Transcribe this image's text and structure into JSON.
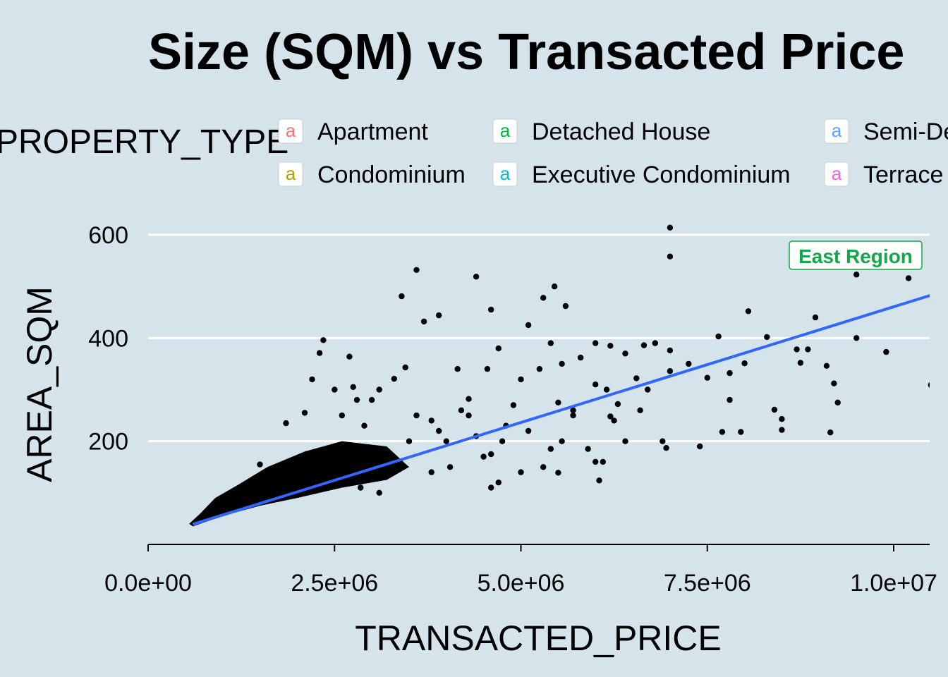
{
  "chart_data": {
    "type": "scatter",
    "title": "Size (SQM) vs Transacted Price",
    "xlabel": "TRANSACTED_PRICE",
    "ylabel": "AREA_SQM",
    "xlim": [
      -50000,
      10500000
    ],
    "ylim": [
      0,
      620
    ],
    "x_ticks": [
      0,
      2500000,
      5000000,
      7500000,
      10000000
    ],
    "x_tick_labels": [
      "0.0e+00",
      "2.5e+06",
      "5.0e+06",
      "7.5e+06",
      "1.0e+07"
    ],
    "y_ticks": [
      200,
      400,
      600
    ],
    "y_tick_labels": [
      "200",
      "400",
      "600"
    ],
    "legend": {
      "title": "PROPERTY_TYPE",
      "position": "top",
      "key_glyph": "a",
      "entries": [
        {
          "label": "Apartment",
          "color": "#f8766d"
        },
        {
          "label": "Condominium",
          "color": "#b79f00"
        },
        {
          "label": "Detached House",
          "color": "#00ba38"
        },
        {
          "label": "Executive Condominium",
          "color": "#00bfc4"
        },
        {
          "label": "Semi-Detached House",
          "color": "#619cff"
        },
        {
          "label": "Terrace House",
          "color": "#f564e3"
        }
      ]
    },
    "annotation": {
      "text": "East Region",
      "color": "#12a74a"
    },
    "trend_line": {
      "type": "linear",
      "color": "#3366ff",
      "x": [
        600000,
        10500000
      ],
      "y": [
        39,
        483
      ]
    },
    "point_color": "#000000",
    "points": [
      [
        7000000,
        614
      ],
      [
        7000000,
        558
      ],
      [
        3600000,
        532
      ],
      [
        4400000,
        519
      ],
      [
        5450000,
        500
      ],
      [
        9500000,
        523
      ],
      [
        10200000,
        516
      ],
      [
        3400000,
        481
      ],
      [
        5300000,
        478
      ],
      [
        5600000,
        462
      ],
      [
        4600000,
        455
      ],
      [
        8050000,
        452
      ],
      [
        3900000,
        444
      ],
      [
        3700000,
        432
      ],
      [
        8950000,
        440
      ],
      [
        5100000,
        425
      ],
      [
        2350000,
        396
      ],
      [
        4700000,
        380
      ],
      [
        6650000,
        386
      ],
      [
        7000000,
        376
      ],
      [
        6200000,
        385
      ],
      [
        7650000,
        403
      ],
      [
        8300000,
        402
      ],
      [
        8700000,
        378
      ],
      [
        9900000,
        373
      ],
      [
        9500000,
        400
      ],
      [
        8850000,
        378
      ],
      [
        6400000,
        370
      ],
      [
        7000000,
        336
      ],
      [
        7250000,
        350
      ],
      [
        6000000,
        310
      ],
      [
        6550000,
        322
      ],
      [
        7800000,
        332
      ],
      [
        8750000,
        352
      ],
      [
        9100000,
        346
      ],
      [
        9200000,
        312
      ],
      [
        10500000,
        309
      ],
      [
        7500000,
        323
      ],
      [
        8000000,
        351
      ],
      [
        5000000,
        320
      ],
      [
        5800000,
        362
      ],
      [
        5550000,
        350
      ],
      [
        2300000,
        371
      ],
      [
        2700000,
        364
      ],
      [
        3450000,
        343
      ],
      [
        3300000,
        321
      ],
      [
        2750000,
        305
      ],
      [
        6150000,
        300
      ],
      [
        5500000,
        275
      ],
      [
        7800000,
        280
      ],
      [
        8400000,
        261
      ],
      [
        8500000,
        243
      ],
      [
        9250000,
        275
      ],
      [
        6300000,
        272
      ],
      [
        6200000,
        248
      ],
      [
        5700000,
        260
      ],
      [
        4300000,
        282
      ],
      [
        7700000,
        218
      ],
      [
        7950000,
        218
      ],
      [
        8500000,
        222
      ],
      [
        9150000,
        217
      ],
      [
        7400000,
        190
      ],
      [
        6900000,
        200
      ],
      [
        6950000,
        187
      ],
      [
        6000000,
        160
      ],
      [
        5550000,
        200
      ],
      [
        5100000,
        220
      ],
      [
        5400000,
        185
      ],
      [
        4750000,
        200
      ],
      [
        6100000,
        160
      ],
      [
        5000000,
        140
      ],
      [
        5500000,
        139
      ],
      [
        6050000,
        124
      ],
      [
        4500000,
        170
      ],
      [
        3900000,
        220
      ],
      [
        3500000,
        200
      ],
      [
        2900000,
        230
      ],
      [
        2600000,
        250
      ],
      [
        2100000,
        255
      ],
      [
        1850000,
        235
      ],
      [
        3000000,
        280
      ],
      [
        4200000,
        260
      ],
      [
        4400000,
        210
      ],
      [
        4050000,
        150
      ],
      [
        5300000,
        150
      ],
      [
        5700000,
        250
      ],
      [
        6400000,
        200
      ],
      [
        6600000,
        260
      ],
      [
        4900000,
        270
      ],
      [
        3800000,
        240
      ],
      [
        4600000,
        175
      ],
      [
        4000000,
        200
      ],
      [
        3200000,
        160
      ],
      [
        1500000,
        155
      ],
      [
        6250000,
        240
      ],
      [
        6700000,
        300
      ],
      [
        5900000,
        185
      ],
      [
        4800000,
        230
      ],
      [
        4300000,
        250
      ],
      [
        3600000,
        250
      ],
      [
        2500000,
        300
      ],
      [
        2200000,
        320
      ],
      [
        2800000,
        280
      ],
      [
        3100000,
        300
      ],
      [
        4150000,
        340
      ],
      [
        4550000,
        340
      ],
      [
        5250000,
        340
      ],
      [
        5400000,
        390
      ],
      [
        6000000,
        390
      ],
      [
        6800000,
        390
      ],
      [
        4700000,
        120
      ],
      [
        3100000,
        100
      ],
      [
        4600000,
        110
      ],
      [
        2850000,
        110
      ],
      [
        3800000,
        140
      ]
    ]
  }
}
